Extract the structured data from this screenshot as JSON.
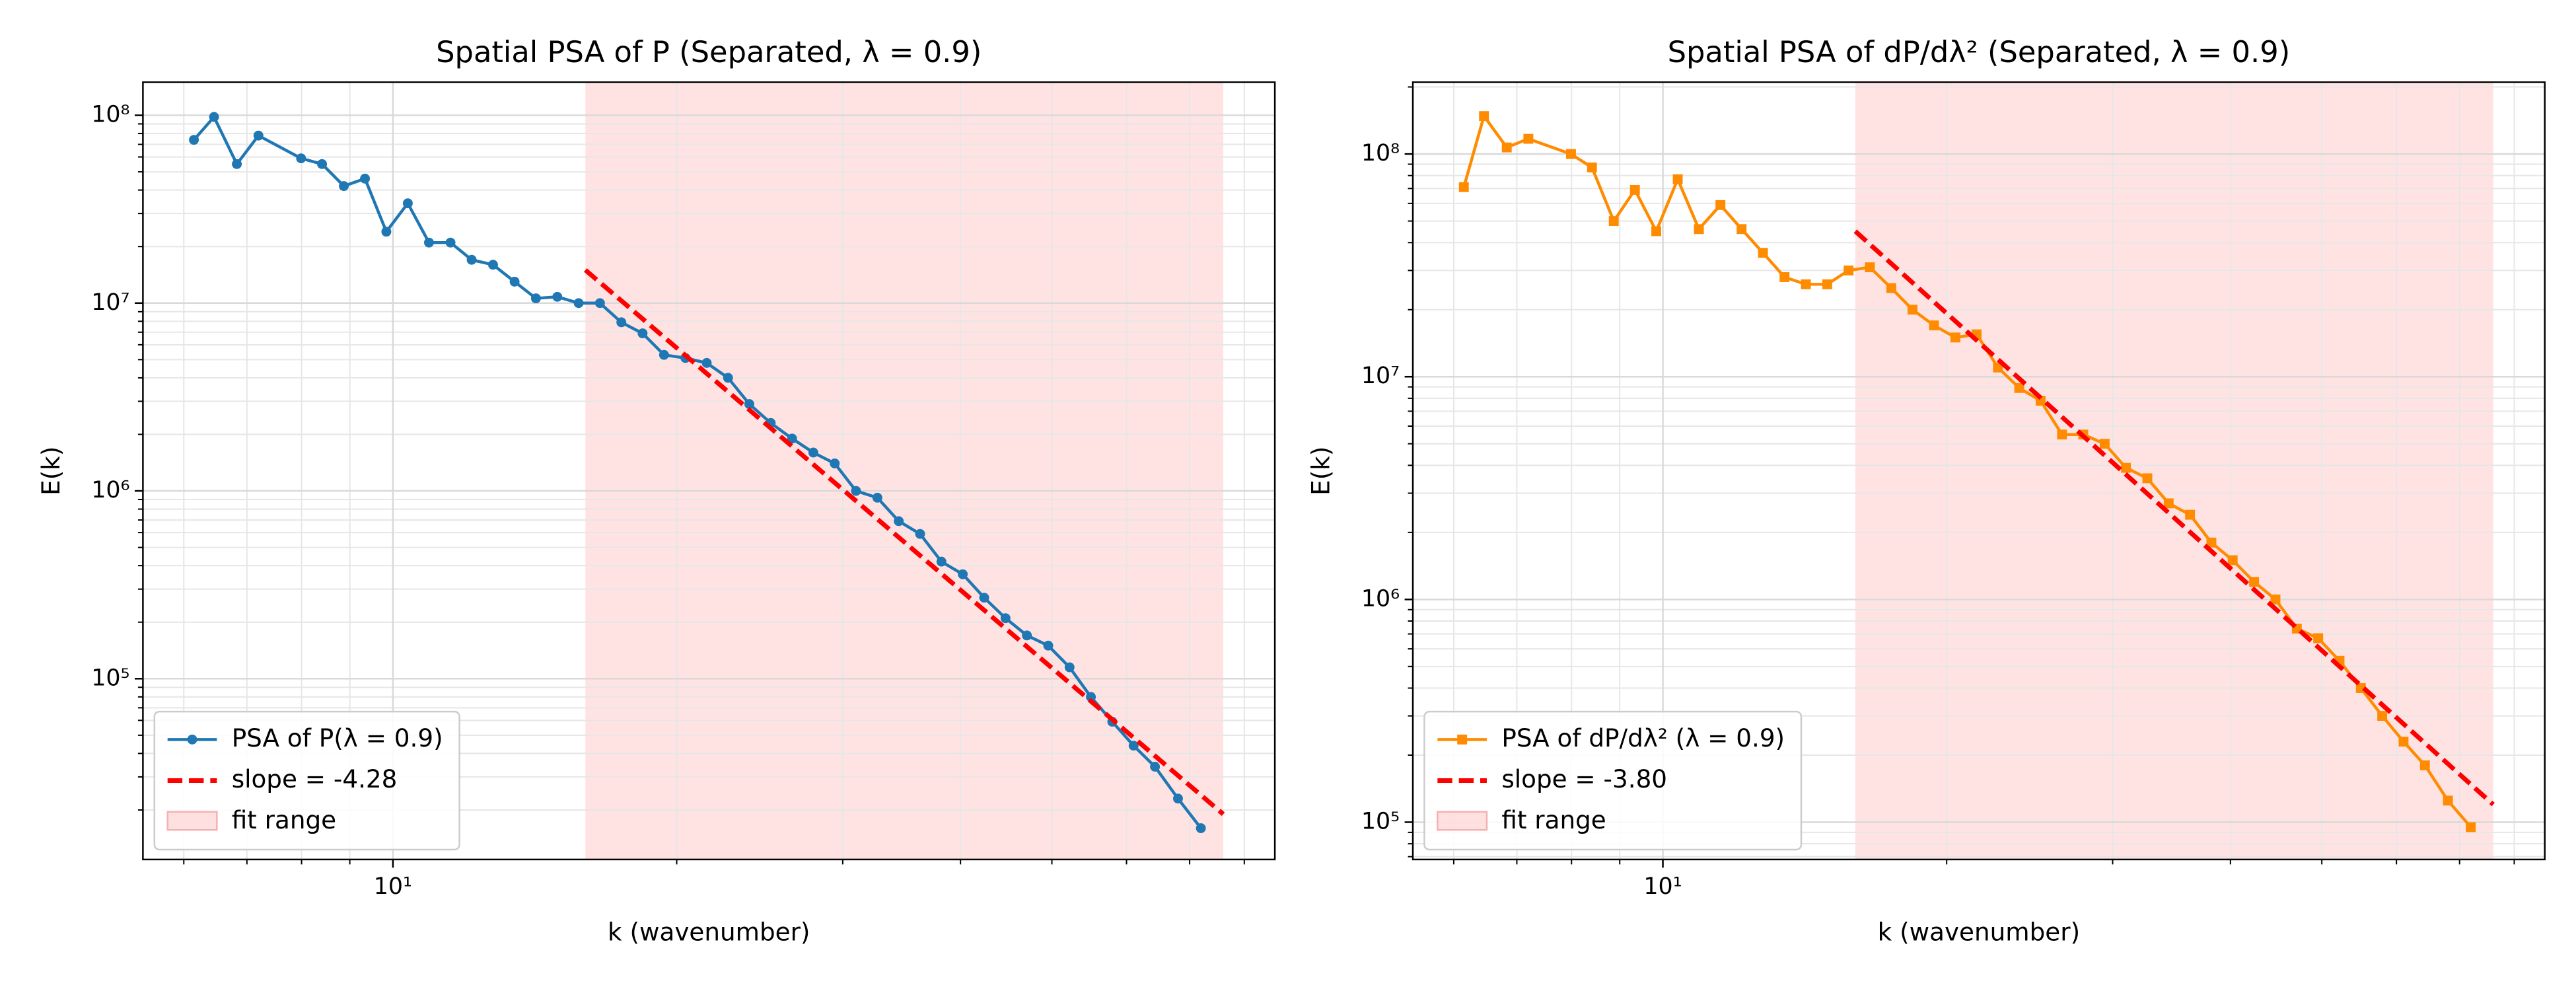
{
  "chart_data": [
    {
      "type": "line",
      "title": "Spatial PSA of P (Separated, λ = 0.9)",
      "xlabel": "k (wavenumber)",
      "ylabel": "E(k)",
      "xscale": "log",
      "yscale": "log",
      "grid": true,
      "legend": "lower left",
      "xlim": [
        5.43,
        86.2
      ],
      "ylim": [
        10900,
        150000000
      ],
      "xticks": [
        {
          "value": 10,
          "label": "10¹"
        }
      ],
      "yticks": [
        {
          "value": 100000,
          "label": "10⁵"
        },
        {
          "value": 1000000,
          "label": "10⁶"
        },
        {
          "value": 10000000,
          "label": "10⁷"
        },
        {
          "value": 100000000,
          "label": "10⁸"
        }
      ],
      "x": [
        6.15,
        6.46,
        6.83,
        7.2,
        7.99,
        8.41,
        8.87,
        9.34,
        9.84,
        10.37,
        10.92,
        11.51,
        12.12,
        12.77,
        13.46,
        14.18,
        14.94,
        15.74,
        16.58,
        17.47,
        18.4,
        19.39,
        20.43,
        21.52,
        22.67,
        23.88,
        25.16,
        26.51,
        27.92,
        29.42,
        30.99,
        32.65,
        34.4,
        36.24,
        38.18,
        40.22,
        42.38,
        44.65,
        47.04,
        49.56,
        52.21,
        55.0,
        57.95,
        61.05,
        64.32,
        68.04,
        71.95
      ],
      "series": [
        {
          "name": "PSA of P(λ = 0.9)",
          "color": "#1f77b4",
          "marker": "circle",
          "values": [
            74000000,
            98000000,
            55000000,
            78000000,
            59000000,
            55000000,
            42000000,
            46000000,
            24000000,
            34000000,
            21000000,
            21000000,
            17000000,
            16000000,
            13000000,
            10600000,
            10800000,
            10000000,
            10000000,
            7900000,
            6900000,
            5300000,
            5100000,
            4800000,
            4000000,
            2900000,
            2300000,
            1900000,
            1600000,
            1400000,
            1000000,
            920000,
            690000,
            590000,
            420000,
            360000,
            270000,
            210000,
            170000,
            150000,
            115000,
            80000,
            59000,
            44000,
            34000,
            23000,
            16000
          ]
        },
        {
          "name": "slope = -4.28",
          "color": "#ff0000",
          "dashed": true,
          "x": [
            16,
            76
          ],
          "values": [
            15000000,
            19000
          ]
        }
      ],
      "fit_range": {
        "name": "fit range",
        "range": [
          16,
          76
        ],
        "color": "#ffcccc"
      }
    },
    {
      "type": "line",
      "title": "Spatial PSA of dP/dλ² (Separated, λ = 0.9)",
      "xlabel": "k (wavenumber)",
      "ylabel": "E(k)",
      "xscale": "log",
      "yscale": "log",
      "grid": true,
      "legend": "lower left",
      "xlim": [
        5.43,
        86.2
      ],
      "ylim": [
        68000,
        210000000
      ],
      "xticks": [
        {
          "value": 10,
          "label": "10¹"
        }
      ],
      "yticks": [
        {
          "value": 100000,
          "label": "10⁵"
        },
        {
          "value": 1000000,
          "label": "10⁶"
        },
        {
          "value": 10000000,
          "label": "10⁷"
        },
        {
          "value": 100000000,
          "label": "10⁸"
        }
      ],
      "x": [
        6.15,
        6.46,
        6.83,
        7.2,
        7.99,
        8.41,
        8.87,
        9.34,
        9.84,
        10.37,
        10.92,
        11.51,
        12.12,
        12.77,
        13.46,
        14.18,
        14.94,
        15.74,
        16.58,
        17.47,
        18.4,
        19.39,
        20.43,
        21.52,
        22.67,
        23.88,
        25.16,
        26.51,
        27.92,
        29.42,
        30.99,
        32.65,
        34.4,
        36.24,
        38.18,
        40.22,
        42.38,
        44.65,
        47.04,
        49.56,
        52.21,
        55.0,
        57.95,
        61.05,
        64.32,
        68.04,
        71.95
      ],
      "series": [
        {
          "name": "PSA of dP/dλ² (λ = 0.9)",
          "color": "#ff8c00",
          "marker": "square",
          "values": [
            71000000,
            148000000,
            107000000,
            117000000,
            100000000,
            87000000,
            50000000,
            69000000,
            45000000,
            77000000,
            46000000,
            59000000,
            46000000,
            36000000,
            28000000,
            26000000,
            26000000,
            30000000,
            31000000,
            25000000,
            20000000,
            17000000,
            15000000,
            15500000,
            11000000,
            8900000,
            7800000,
            5500000,
            5500000,
            5000000,
            3900000,
            3500000,
            2700000,
            2400000,
            1800000,
            1500000,
            1200000,
            1000000,
            740000,
            670000,
            530000,
            400000,
            300000,
            230000,
            180000,
            125000,
            95000
          ]
        },
        {
          "name": "slope = -3.80",
          "color": "#ff0000",
          "dashed": true,
          "x": [
            16,
            76
          ],
          "values": [
            45000000,
            120000
          ]
        }
      ],
      "fit_range": {
        "name": "fit range",
        "range": [
          16,
          76
        ],
        "color": "#ffcccc"
      }
    }
  ]
}
